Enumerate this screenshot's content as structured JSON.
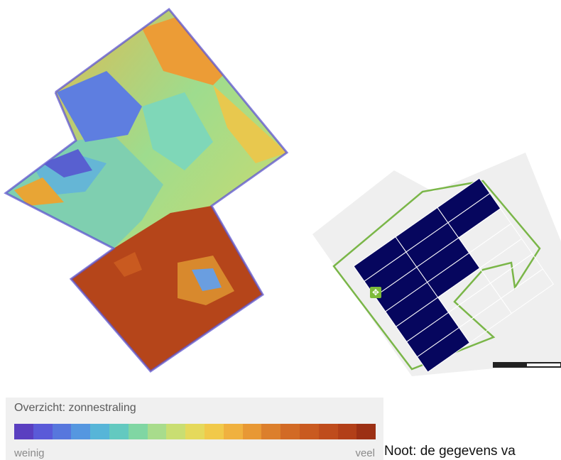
{
  "heatmap": {
    "colors": {
      "low": "#6a50c8",
      "mid": "#7fd7b8",
      "high": "#b5451a"
    }
  },
  "panel_map": {
    "roof_fill": "#efefef",
    "outline_color": "#7ab648",
    "panel_color": "#06065e",
    "move_icon": "move-arrows-icon"
  },
  "legend": {
    "title": "Overzicht: zonnestraling",
    "low_label": "weinig",
    "high_label": "veel",
    "colors": [
      "#5a3fc0",
      "#5a5ad8",
      "#5777dd",
      "#5597e0",
      "#57b5d8",
      "#63c9c0",
      "#80d6a3",
      "#a8dc8c",
      "#c9de72",
      "#e5d95b",
      "#f1c94a",
      "#f0b13f",
      "#e89834",
      "#dc7f2c",
      "#d26a25",
      "#c95a20",
      "#bf4c1c",
      "#b23f18",
      "#9c3014"
    ]
  },
  "note": {
    "text": "Noot: de gegevens va"
  }
}
